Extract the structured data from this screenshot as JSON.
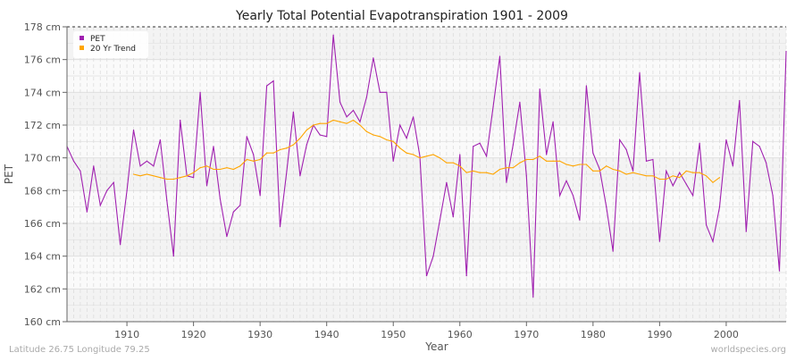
{
  "chart_data": {
    "type": "line",
    "title": "Yearly Total Potential Evapotranspiration 1901 - 2009",
    "xlabel": "Year",
    "ylabel": "PET",
    "xlim": [
      1901,
      2009
    ],
    "ylim": [
      160,
      178
    ],
    "x_ticks": [
      1910,
      1920,
      1930,
      1940,
      1950,
      1960,
      1970,
      1980,
      1990,
      2000
    ],
    "y_ticks": [
      "160 cm",
      "162 cm",
      "164 cm",
      "166 cm",
      "168 cm",
      "170 cm",
      "172 cm",
      "174 cm",
      "176 cm",
      "178 cm"
    ],
    "grid": true,
    "legend_position": "top-left",
    "series": [
      {
        "name": "PET",
        "color": "#a020b0",
        "start_year": 1901,
        "values": [
          170.7,
          169.8,
          169.2,
          166.7,
          169.5,
          167.1,
          168.0,
          168.5,
          164.7,
          168.0,
          171.7,
          169.5,
          169.8,
          169.5,
          171.1,
          167.4,
          164.0,
          172.3,
          168.9,
          168.8,
          174.0,
          168.3,
          170.7,
          167.5,
          165.2,
          166.7,
          167.1,
          171.3,
          170.2,
          167.7,
          174.4,
          174.7,
          165.8,
          169.2,
          172.8,
          168.9,
          170.8,
          172.0,
          171.4,
          171.3,
          177.5,
          173.4,
          172.5,
          172.9,
          172.2,
          173.7,
          176.1,
          174.0,
          174.0,
          169.8,
          172.0,
          171.2,
          172.5,
          170.1,
          162.8,
          164.0,
          166.2,
          168.5,
          166.4,
          170.2,
          162.8,
          170.7,
          170.9,
          170.1,
          173.1,
          176.2,
          168.5,
          170.8,
          173.4,
          168.9,
          161.5,
          174.2,
          170.2,
          172.2,
          167.7,
          168.6,
          167.7,
          166.2,
          174.4,
          170.3,
          169.3,
          167.0,
          164.3,
          171.1,
          170.5,
          169.2,
          175.2,
          169.8,
          169.9,
          164.9,
          169.2,
          168.3,
          169.1,
          168.4,
          167.7,
          170.9,
          165.9,
          164.9,
          167.0,
          171.1,
          169.5,
          173.5,
          165.5,
          171.0,
          170.7,
          169.7,
          167.7,
          163.1,
          176.5
        ]
      },
      {
        "name": "20 Yr Trend",
        "color": "#ffa500",
        "start_year": 1911,
        "values": [
          169.0,
          168.9,
          169.0,
          168.9,
          168.8,
          168.7,
          168.7,
          168.8,
          168.9,
          169.1,
          169.4,
          169.5,
          169.3,
          169.3,
          169.4,
          169.3,
          169.5,
          169.9,
          169.8,
          169.9,
          170.3,
          170.3,
          170.5,
          170.6,
          170.8,
          171.2,
          171.7,
          172.0,
          172.1,
          172.1,
          172.3,
          172.2,
          172.1,
          172.3,
          172.0,
          171.6,
          171.4,
          171.3,
          171.1,
          171.0,
          170.6,
          170.3,
          170.2,
          170.0,
          170.1,
          170.2,
          170.0,
          169.7,
          169.7,
          169.5,
          169.1,
          169.2,
          169.1,
          169.1,
          169.0,
          169.3,
          169.4,
          169.4,
          169.7,
          169.9,
          169.9,
          170.1,
          169.8,
          169.8,
          169.8,
          169.6,
          169.5,
          169.6,
          169.6,
          169.2,
          169.2,
          169.5,
          169.3,
          169.2,
          169.0,
          169.1,
          169.0,
          168.9,
          168.9,
          168.7,
          168.7,
          168.9,
          168.8,
          169.2,
          169.1,
          169.1,
          168.9,
          168.5,
          168.8
        ]
      }
    ]
  },
  "footer": {
    "location": "Latitude 26.75 Longitude 79.25",
    "source": "worldspecies.org"
  }
}
